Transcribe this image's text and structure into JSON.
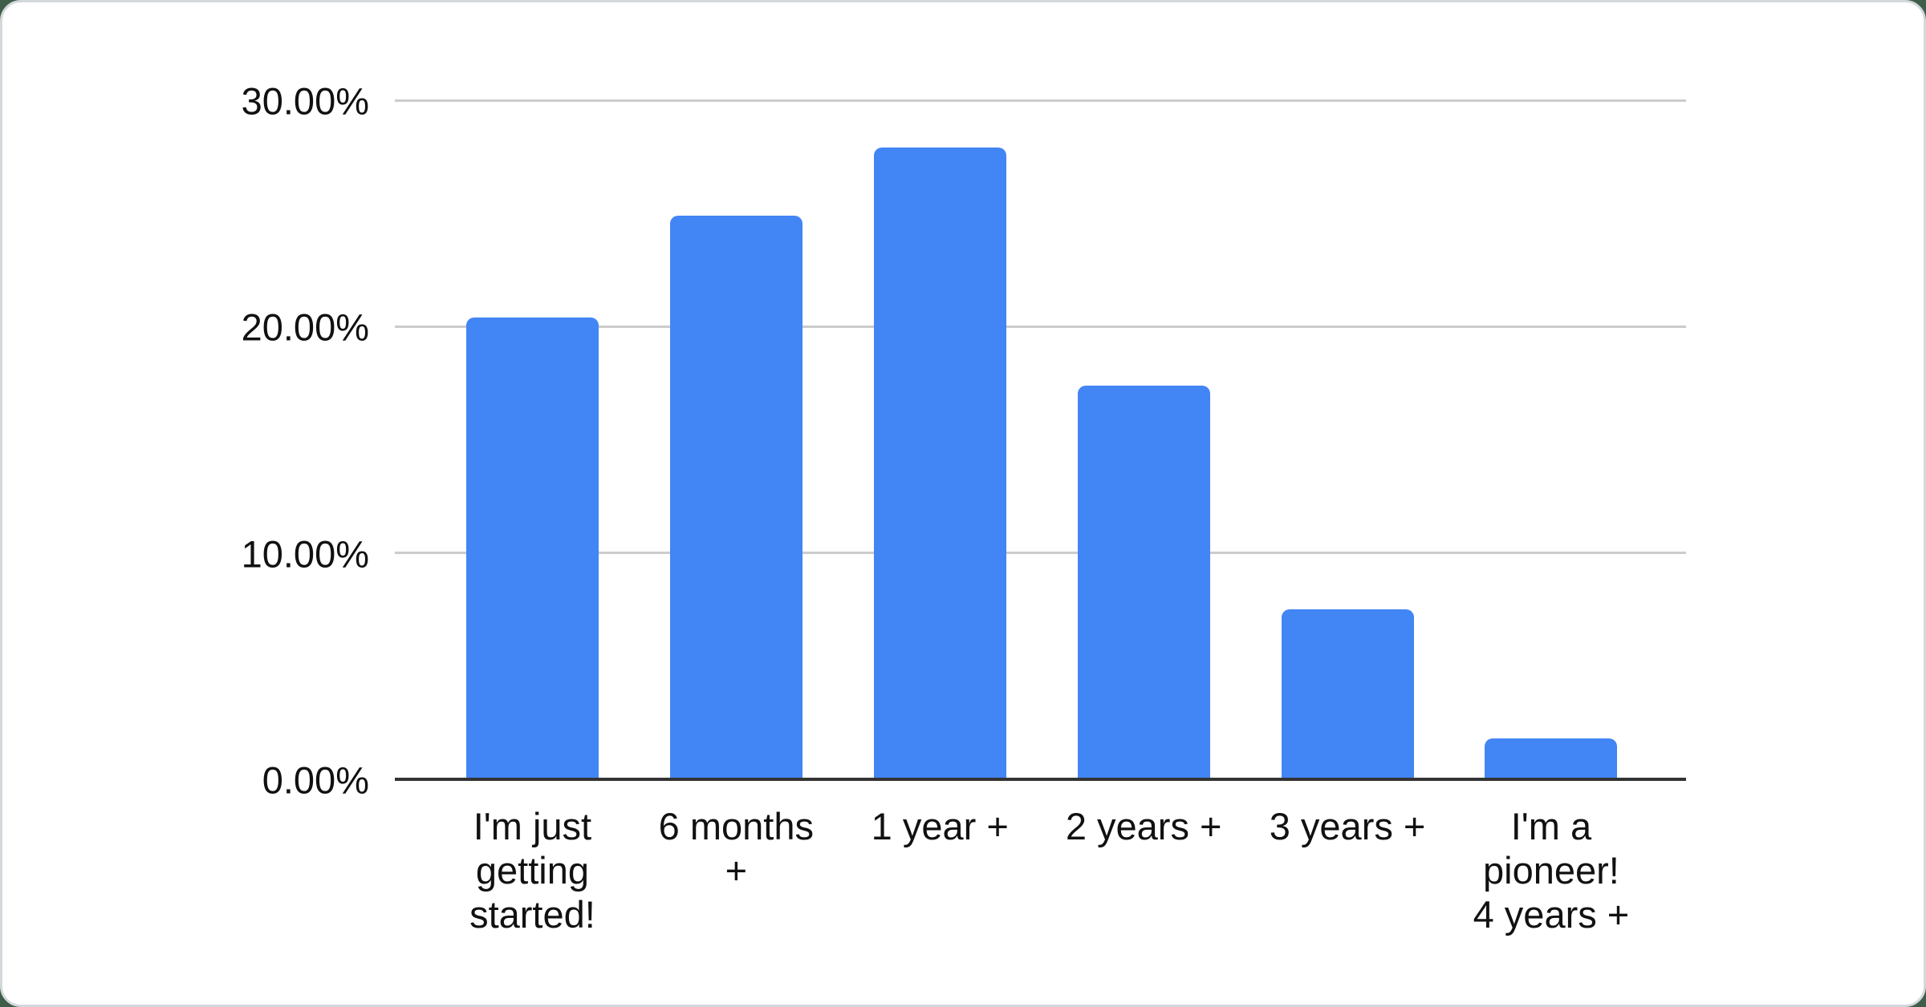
{
  "page": {
    "background_color": "#3f5e49",
    "card_color": "#ffffff",
    "card_border_color": "#d3d8db"
  },
  "chart_data": {
    "type": "bar",
    "categories": [
      {
        "label": "I'm just getting started!",
        "lines": [
          "I'm just",
          "getting",
          "started!"
        ]
      },
      {
        "label": "6 months +",
        "lines": [
          "6 months",
          "+"
        ]
      },
      {
        "label": "1 year +",
        "lines": [
          "1 year +"
        ]
      },
      {
        "label": "2 years +",
        "lines": [
          "2 years +"
        ]
      },
      {
        "label": "3 years +",
        "lines": [
          "3 years +"
        ]
      },
      {
        "label": "I'm a pioneer! 4 years +",
        "lines": [
          "I'm a",
          "pioneer!",
          "4 years +"
        ]
      }
    ],
    "values": [
      20.4,
      24.9,
      27.9,
      17.4,
      7.5,
      1.8
    ],
    "value_unit": "percent",
    "y_ticks": [
      {
        "label": "0.00%",
        "value": 0
      },
      {
        "label": "10.00%",
        "value": 10
      },
      {
        "label": "20.00%",
        "value": 20
      },
      {
        "label": "30.00%",
        "value": 30
      }
    ],
    "ylim": [
      0,
      30
    ],
    "xlabel": "",
    "ylabel": "",
    "grid": true,
    "legend_position": "none",
    "bar_color": "#4285f4",
    "gridline_color": "#cccccc",
    "axis_line_color": "#333333",
    "label_color": "#111111"
  }
}
